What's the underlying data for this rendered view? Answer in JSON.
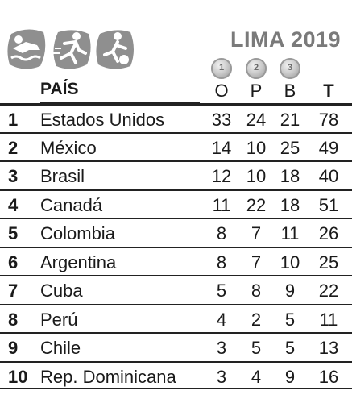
{
  "header": {
    "title": "LIMA 2019",
    "medal_labels": [
      "1",
      "2",
      "3"
    ],
    "sport_icons": [
      "swimming-icon",
      "running-icon",
      "soccer-icon"
    ]
  },
  "columns": {
    "country": "PAÍS",
    "gold": "O",
    "silver": "P",
    "bronze": "B",
    "total": "T"
  },
  "rows": [
    {
      "pos": "1",
      "country": "Estados Unidos",
      "gold": "33",
      "silver": "24",
      "bronze": "21",
      "total": "78"
    },
    {
      "pos": "2",
      "country": "México",
      "gold": "14",
      "silver": "10",
      "bronze": "25",
      "total": "49"
    },
    {
      "pos": "3",
      "country": "Brasil",
      "gold": "12",
      "silver": "10",
      "bronze": "18",
      "total": "40"
    },
    {
      "pos": "4",
      "country": "Canadá",
      "gold": "11",
      "silver": "22",
      "bronze": "18",
      "total": "51"
    },
    {
      "pos": "5",
      "country": "Colombia",
      "gold": "8",
      "silver": "7",
      "bronze": "11",
      "total": "26"
    },
    {
      "pos": "6",
      "country": "Argentina",
      "gold": "8",
      "silver": "7",
      "bronze": "10",
      "total": "25"
    },
    {
      "pos": "7",
      "country": "Cuba",
      "gold": "5",
      "silver": "8",
      "bronze": "9",
      "total": "22"
    },
    {
      "pos": "8",
      "country": "Perú",
      "gold": "4",
      "silver": "2",
      "bronze": "5",
      "total": "11"
    },
    {
      "pos": "9",
      "country": "Chile",
      "gold": "3",
      "silver": "5",
      "bronze": "5",
      "total": "13"
    },
    {
      "pos": "10",
      "country": "Rep. Dominicana",
      "gold": "3",
      "silver": "4",
      "bronze": "9",
      "total": "16"
    }
  ]
}
